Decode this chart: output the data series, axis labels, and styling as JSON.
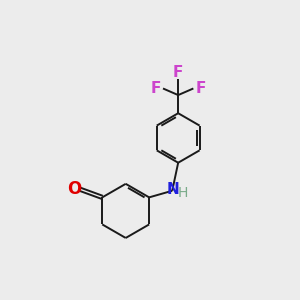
{
  "bg_color": "#ececec",
  "bond_color": "#1a1a1a",
  "bond_width": 1.4,
  "O_color": "#e00000",
  "N_color": "#2020dd",
  "H_color": "#7aab8a",
  "F_color": "#cc44cc",
  "figsize": [
    3.0,
    3.0
  ],
  "dpi": 100,
  "xlim": [
    -0.8,
    4.2
  ],
  "ylim": [
    -1.2,
    5.8
  ]
}
